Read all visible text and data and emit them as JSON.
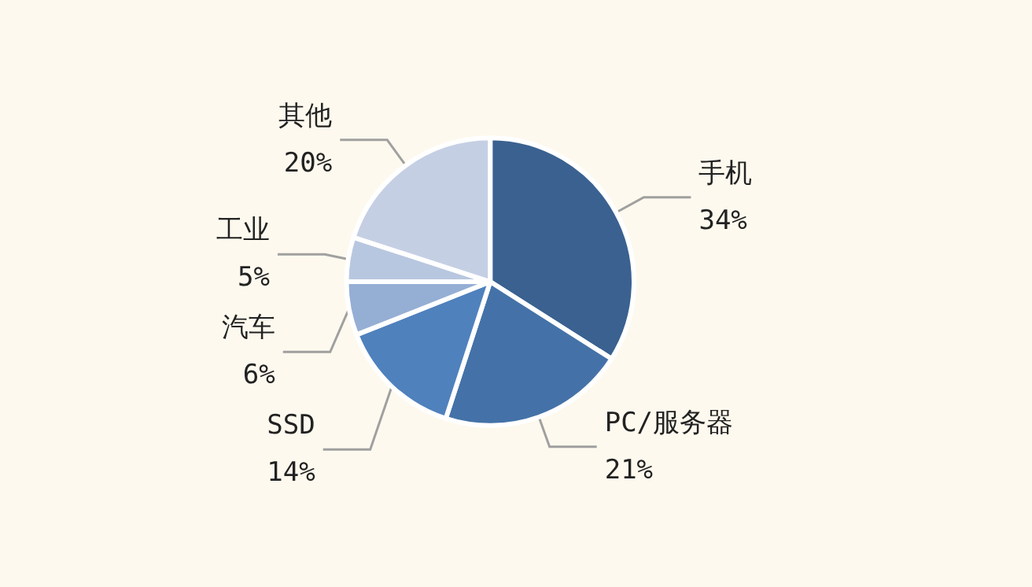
{
  "chart_data": {
    "type": "pie",
    "categories": [
      "手机",
      "PC/服务器",
      "SSD",
      "汽车",
      "工业",
      "其他"
    ],
    "values": [
      34,
      21,
      14,
      6,
      5,
      20
    ],
    "value_labels": [
      "34%",
      "21%",
      "14%",
      "6%",
      "5%",
      "20%"
    ],
    "colors": [
      "#3a6190",
      "#4472a8",
      "#4f81bd",
      "#95aed4",
      "#b8c7e0",
      "#c5cfe4"
    ],
    "legend": false
  }
}
